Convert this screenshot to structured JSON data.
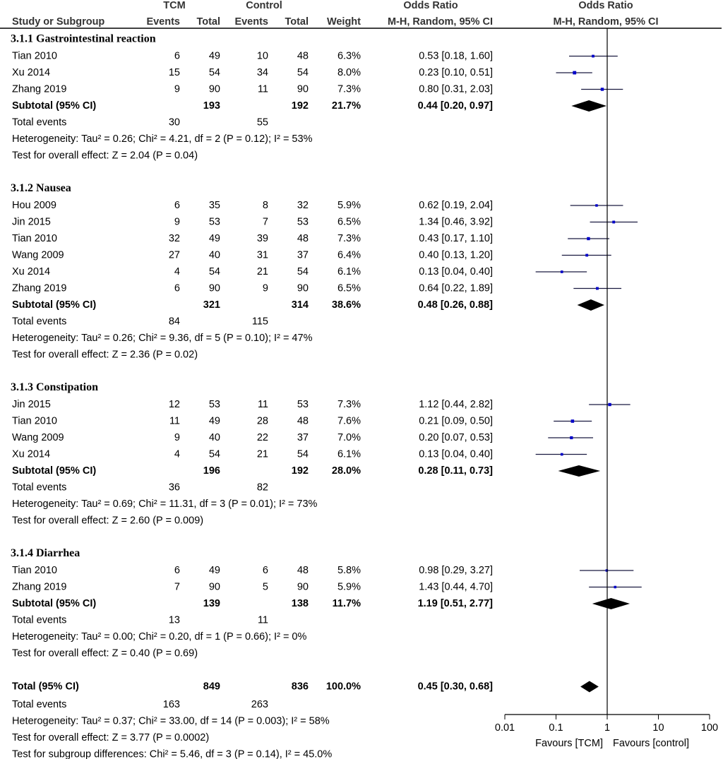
{
  "chart_data": {
    "type": "forest",
    "headers": {
      "group1": "TCM",
      "group2": "Control",
      "study": "Study or Subgroup",
      "events1": "Events",
      "total1": "Total",
      "events2": "Events",
      "total2": "Total",
      "weight": "Weight",
      "or_title": "Odds Ratio",
      "or_method": "M-H, Random, 95% CI",
      "plot_title": "Odds Ratio",
      "plot_method": "M-H, Random, 95% CI"
    },
    "marker_color": "#0000c8",
    "line_color": "#1a1a40",
    "diamond_color": "#000000",
    "subgroups": [
      {
        "title": "3.1.1 Gastrointestinal reaction",
        "studies": [
          {
            "name": "Tian 2010",
            "e1": 6,
            "t1": 49,
            "e2": 10,
            "t2": 48,
            "weight": 6.3,
            "weight_label": "6.3%",
            "ci_label": "0.53 [0.18, 1.60]",
            "or": 0.53,
            "lo": 0.18,
            "hi": 1.6
          },
          {
            "name": "Xu 2014",
            "e1": 15,
            "t1": 54,
            "e2": 34,
            "t2": 54,
            "weight": 8.0,
            "weight_label": "8.0%",
            "ci_label": "0.23 [0.10, 0.51]",
            "or": 0.23,
            "lo": 0.1,
            "hi": 0.51
          },
          {
            "name": "Zhang 2019",
            "e1": 9,
            "t1": 90,
            "e2": 11,
            "t2": 90,
            "weight": 7.3,
            "weight_label": "7.3%",
            "ci_label": "0.80 [0.31, 2.03]",
            "or": 0.8,
            "lo": 0.31,
            "hi": 2.03
          }
        ],
        "subtotal": {
          "name": "Subtotal (95% CI)",
          "t1": 193,
          "t2": 192,
          "weight": 21.7,
          "weight_label": "21.7%",
          "ci_label": "0.44 [0.20, 0.97]",
          "or": 0.44,
          "lo": 0.2,
          "hi": 0.97
        },
        "events_label": "Total events",
        "events1": 30,
        "events2": 55,
        "heterogeneity": "Heterogeneity: Tau² = 0.26; Chi² = 4.21, df = 2 (P = 0.12); I² = 53%",
        "overall": "Test for overall effect: Z = 2.04 (P = 0.04)"
      },
      {
        "title": "3.1.2 Nausea",
        "studies": [
          {
            "name": "Hou 2009",
            "e1": 6,
            "t1": 35,
            "e2": 8,
            "t2": 32,
            "weight": 5.9,
            "weight_label": "5.9%",
            "ci_label": "0.62 [0.19, 2.04]",
            "or": 0.62,
            "lo": 0.19,
            "hi": 2.04
          },
          {
            "name": "Jin 2015",
            "e1": 9,
            "t1": 53,
            "e2": 7,
            "t2": 53,
            "weight": 6.5,
            "weight_label": "6.5%",
            "ci_label": "1.34 [0.46, 3.92]",
            "or": 1.34,
            "lo": 0.46,
            "hi": 3.92
          },
          {
            "name": "Tian 2010",
            "e1": 32,
            "t1": 49,
            "e2": 39,
            "t2": 48,
            "weight": 7.3,
            "weight_label": "7.3%",
            "ci_label": "0.43 [0.17, 1.10]",
            "or": 0.43,
            "lo": 0.17,
            "hi": 1.1
          },
          {
            "name": "Wang 2009",
            "e1": 27,
            "t1": 40,
            "e2": 31,
            "t2": 37,
            "weight": 6.4,
            "weight_label": "6.4%",
            "ci_label": "0.40 [0.13, 1.20]",
            "or": 0.4,
            "lo": 0.13,
            "hi": 1.2
          },
          {
            "name": "Xu 2014",
            "e1": 4,
            "t1": 54,
            "e2": 21,
            "t2": 54,
            "weight": 6.1,
            "weight_label": "6.1%",
            "ci_label": "0.13 [0.04, 0.40]",
            "or": 0.13,
            "lo": 0.04,
            "hi": 0.4
          },
          {
            "name": "Zhang 2019",
            "e1": 6,
            "t1": 90,
            "e2": 9,
            "t2": 90,
            "weight": 6.5,
            "weight_label": "6.5%",
            "ci_label": "0.64 [0.22, 1.89]",
            "or": 0.64,
            "lo": 0.22,
            "hi": 1.89
          }
        ],
        "subtotal": {
          "name": "Subtotal (95% CI)",
          "t1": 321,
          "t2": 314,
          "weight": 38.6,
          "weight_label": "38.6%",
          "ci_label": "0.48 [0.26, 0.88]",
          "or": 0.48,
          "lo": 0.26,
          "hi": 0.88
        },
        "events_label": "Total events",
        "events1": 84,
        "events2": 115,
        "heterogeneity": "Heterogeneity: Tau² = 0.26; Chi² = 9.36, df = 5 (P = 0.10); I² = 47%",
        "overall": "Test for overall effect: Z = 2.36 (P = 0.02)"
      },
      {
        "title": "3.1.3 Constipation",
        "studies": [
          {
            "name": "Jin 2015",
            "e1": 12,
            "t1": 53,
            "e2": 11,
            "t2": 53,
            "weight": 7.3,
            "weight_label": "7.3%",
            "ci_label": "1.12 [0.44, 2.82]",
            "or": 1.12,
            "lo": 0.44,
            "hi": 2.82
          },
          {
            "name": "Tian 2010",
            "e1": 11,
            "t1": 49,
            "e2": 28,
            "t2": 48,
            "weight": 7.6,
            "weight_label": "7.6%",
            "ci_label": "0.21 [0.09, 0.50]",
            "or": 0.21,
            "lo": 0.09,
            "hi": 0.5
          },
          {
            "name": "Wang 2009",
            "e1": 9,
            "t1": 40,
            "e2": 22,
            "t2": 37,
            "weight": 7.0,
            "weight_label": "7.0%",
            "ci_label": "0.20 [0.07, 0.53]",
            "or": 0.2,
            "lo": 0.07,
            "hi": 0.53
          },
          {
            "name": "Xu 2014",
            "e1": 4,
            "t1": 54,
            "e2": 21,
            "t2": 54,
            "weight": 6.1,
            "weight_label": "6.1%",
            "ci_label": "0.13 [0.04, 0.40]",
            "or": 0.13,
            "lo": 0.04,
            "hi": 0.4
          }
        ],
        "subtotal": {
          "name": "Subtotal (95% CI)",
          "t1": 196,
          "t2": 192,
          "weight": 28.0,
          "weight_label": "28.0%",
          "ci_label": "0.28 [0.11, 0.73]",
          "or": 0.28,
          "lo": 0.11,
          "hi": 0.73
        },
        "events_label": "Total events",
        "events1": 36,
        "events2": 82,
        "heterogeneity": "Heterogeneity: Tau² = 0.69; Chi² = 11.31, df = 3 (P = 0.01); I² = 73%",
        "overall": "Test for overall effect: Z = 2.60 (P = 0.009)"
      },
      {
        "title": "3.1.4 Diarrhea",
        "studies": [
          {
            "name": "Tian 2010",
            "e1": 6,
            "t1": 49,
            "e2": 6,
            "t2": 48,
            "weight": 5.8,
            "weight_label": "5.8%",
            "ci_label": "0.98 [0.29, 3.27]",
            "or": 0.98,
            "lo": 0.29,
            "hi": 3.27
          },
          {
            "name": "Zhang 2019",
            "e1": 7,
            "t1": 90,
            "e2": 5,
            "t2": 90,
            "weight": 5.9,
            "weight_label": "5.9%",
            "ci_label": "1.43 [0.44, 4.70]",
            "or": 1.43,
            "lo": 0.44,
            "hi": 4.7
          }
        ],
        "subtotal": {
          "name": "Subtotal (95% CI)",
          "t1": 139,
          "t2": 138,
          "weight": 11.7,
          "weight_label": "11.7%",
          "ci_label": "1.19 [0.51, 2.77]",
          "or": 1.19,
          "lo": 0.51,
          "hi": 2.77
        },
        "events_label": "Total events",
        "events1": 13,
        "events2": 11,
        "heterogeneity": "Heterogeneity: Tau² = 0.00; Chi² = 0.20, df = 1 (P = 0.66); I² = 0%",
        "overall": "Test for overall effect: Z = 0.40 (P = 0.69)"
      }
    ],
    "total": {
      "name": "Total (95% CI)",
      "t1": 849,
      "t2": 836,
      "weight": 100.0,
      "weight_label": "100.0%",
      "ci_label": "0.45 [0.30, 0.68]",
      "or": 0.45,
      "lo": 0.3,
      "hi": 0.68
    },
    "total_events_label": "Total events",
    "total_events1": 163,
    "total_events2": 263,
    "heterogeneity": "Heterogeneity: Tau² = 0.37; Chi² = 33.00, df = 14 (P = 0.003); I² = 58%",
    "overall": "Test for overall effect: Z = 3.77 (P = 0.0002)",
    "subgroup_differences": "Test for subgroup differences: Chi² = 5.46, df = 3 (P = 0.14), I² = 45.0%",
    "log_x": true,
    "xlim": [
      0.01,
      100
    ],
    "xticks": [
      0.01,
      0.1,
      1,
      10,
      100
    ],
    "favours_left": "Favours [TCM]",
    "favours_right": "Favours [control]"
  }
}
